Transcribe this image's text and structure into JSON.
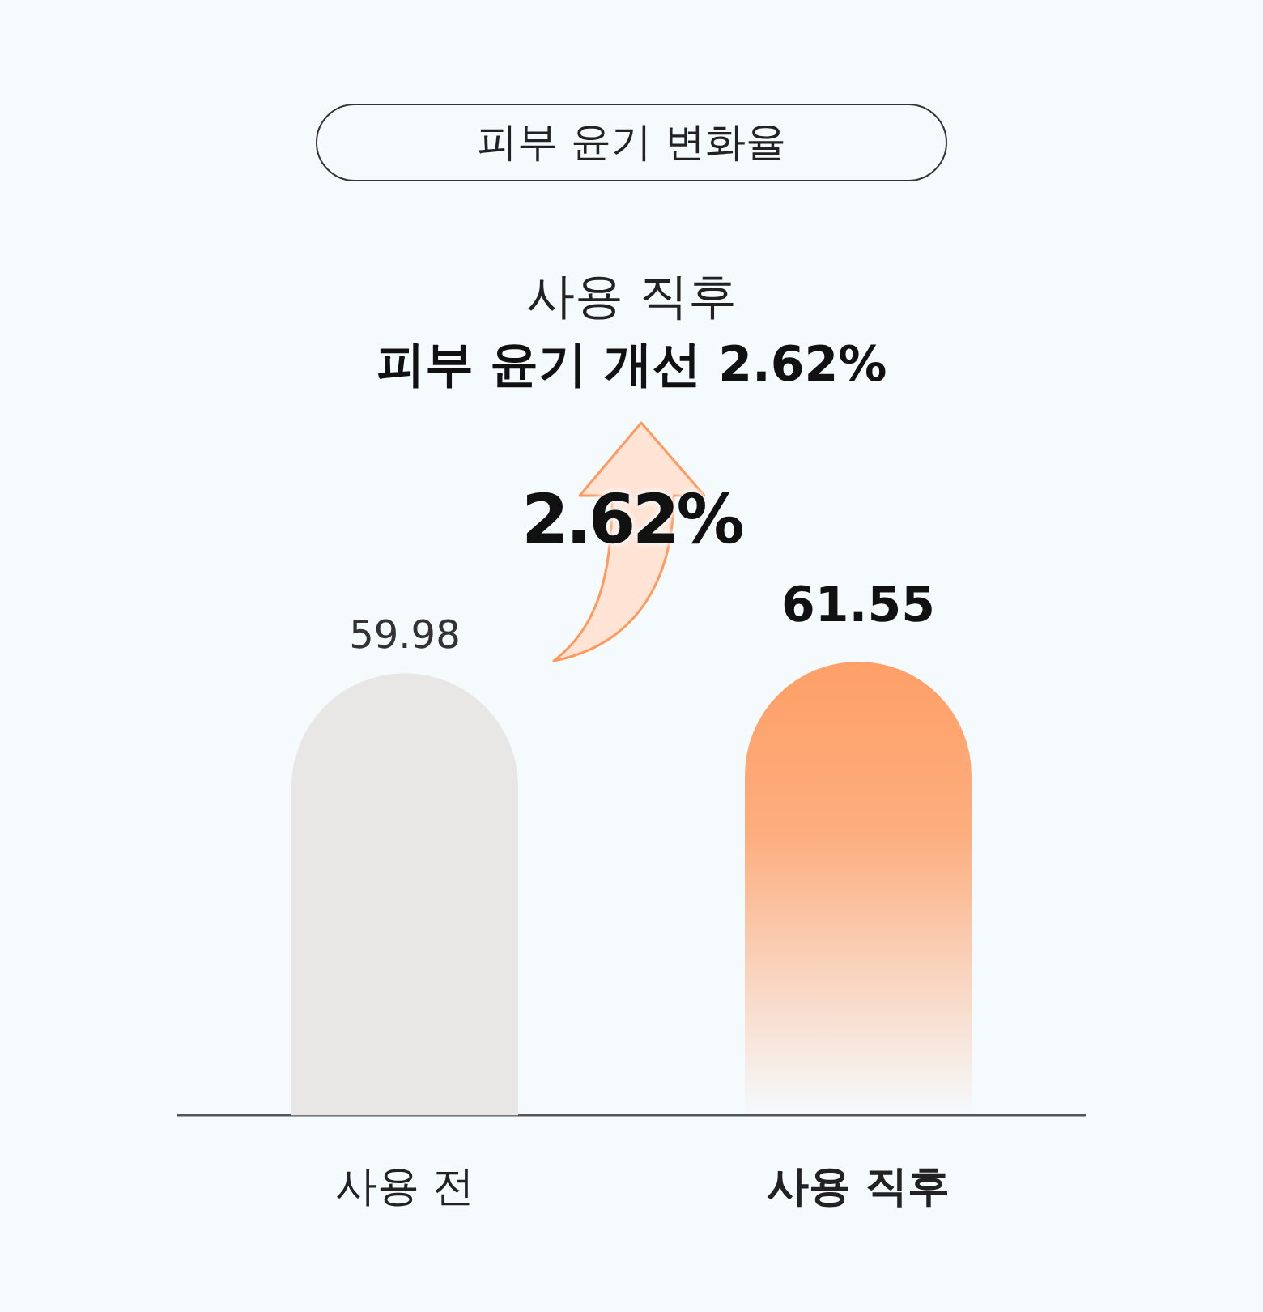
{
  "chart_data": {
    "type": "bar",
    "title": "피부 윤기 변화율",
    "subtitle": "사용 직후",
    "annotations": [
      "피부 윤기 개선 2.62%",
      "2.62%"
    ],
    "categories": [
      "사용 전",
      "사용 직후"
    ],
    "values": [
      59.98,
      61.55
    ],
    "colors": [
      "#e8e7e6",
      "#ff9a5e"
    ],
    "data_labels": true,
    "grid": false,
    "legend": false,
    "tick_labels": "x"
  }
}
